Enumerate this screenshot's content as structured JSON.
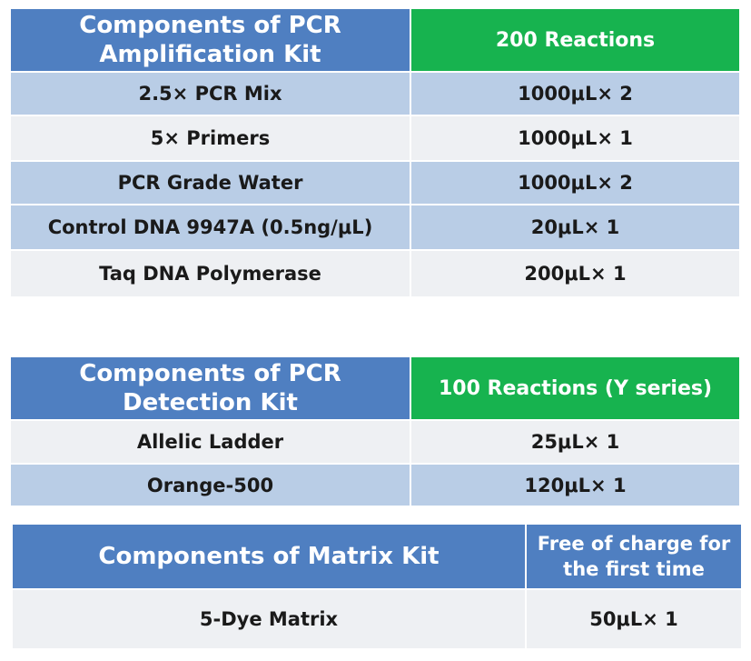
{
  "amplification_kit": {
    "header_component": "Components of PCR Amplification Kit",
    "header_quantity": "200 Reactions",
    "rows": [
      {
        "component": "2.5× PCR Mix",
        "quantity": "1000μL× 2"
      },
      {
        "component": "5× Primers",
        "quantity": "1000μL× 1"
      },
      {
        "component": "PCR Grade Water",
        "quantity": "1000μL× 2"
      },
      {
        "component": "Control DNA 9947A (0.5ng/μL)",
        "quantity": "20μL× 1"
      },
      {
        "component": "Taq DNA Polymerase",
        "quantity": "200μL× 1"
      }
    ]
  },
  "detection_kit": {
    "header_component": "Components of PCR Detection Kit",
    "header_quantity": "100 Reactions (Y series)",
    "rows": [
      {
        "component": "Allelic Ladder",
        "quantity": "25μL× 1"
      },
      {
        "component": "Orange-500",
        "quantity": "120μL× 1"
      }
    ]
  },
  "matrix_kit": {
    "header_component": "Components of Matrix Kit",
    "header_quantity": "Free of charge for the first time",
    "rows": [
      {
        "component": "5-Dye Matrix",
        "quantity": "50μL× 1"
      }
    ]
  },
  "colors": {
    "header_blue": "#4f7fc1",
    "header_green": "#17b34f",
    "row_blue": "#b9cde6",
    "row_gray": "#eef0f3"
  }
}
